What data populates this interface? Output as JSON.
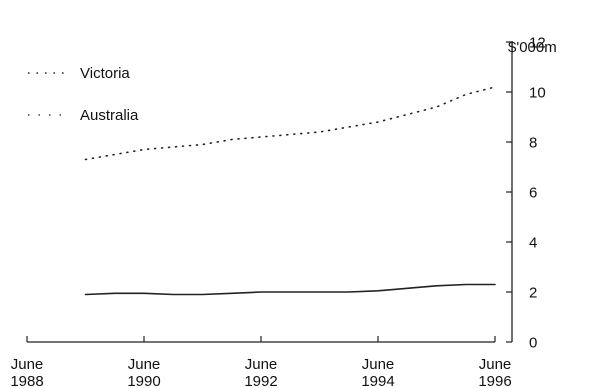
{
  "chart_data": {
    "type": "line",
    "unit_label": "$'000m",
    "ylim": [
      0,
      12
    ],
    "yticks": [
      0,
      2,
      4,
      6,
      8,
      10,
      12
    ],
    "xlim": [
      1988.0,
      1996.0
    ],
    "xticks": [
      {
        "x": 1988,
        "line1": "June",
        "line2": "1988"
      },
      {
        "x": 1990,
        "line1": "June",
        "line2": "1990"
      },
      {
        "x": 1992,
        "line1": "June",
        "line2": "1992"
      },
      {
        "x": 1994,
        "line1": "June",
        "line2": "1994"
      },
      {
        "x": 1996,
        "line1": "June",
        "line2": "1996"
      }
    ],
    "legend_position": "top-left",
    "series": [
      {
        "name": "Victoria",
        "style": "dotted",
        "color": "#222222",
        "points": [
          [
            1989.0,
            7.3
          ],
          [
            1989.5,
            7.5
          ],
          [
            1990.0,
            7.7
          ],
          [
            1990.5,
            7.8
          ],
          [
            1991.0,
            7.9
          ],
          [
            1991.5,
            8.1
          ],
          [
            1992.0,
            8.2
          ],
          [
            1992.5,
            8.3
          ],
          [
            1993.0,
            8.4
          ],
          [
            1993.5,
            8.6
          ],
          [
            1994.0,
            8.8
          ],
          [
            1994.5,
            9.1
          ],
          [
            1995.0,
            9.4
          ],
          [
            1995.5,
            9.9
          ],
          [
            1996.0,
            10.2
          ]
        ]
      },
      {
        "name": "Australia",
        "style": "solid",
        "color": "#222222",
        "points": [
          [
            1989.0,
            1.9
          ],
          [
            1989.5,
            1.95
          ],
          [
            1990.0,
            1.95
          ],
          [
            1990.5,
            1.9
          ],
          [
            1991.0,
            1.9
          ],
          [
            1991.5,
            1.95
          ],
          [
            1992.0,
            2.0
          ],
          [
            1992.5,
            2.0
          ],
          [
            1993.0,
            2.0
          ],
          [
            1993.5,
            2.0
          ],
          [
            1994.0,
            2.05
          ],
          [
            1994.5,
            2.15
          ],
          [
            1995.0,
            2.25
          ],
          [
            1995.5,
            2.3
          ],
          [
            1996.0,
            2.3
          ]
        ]
      }
    ]
  }
}
